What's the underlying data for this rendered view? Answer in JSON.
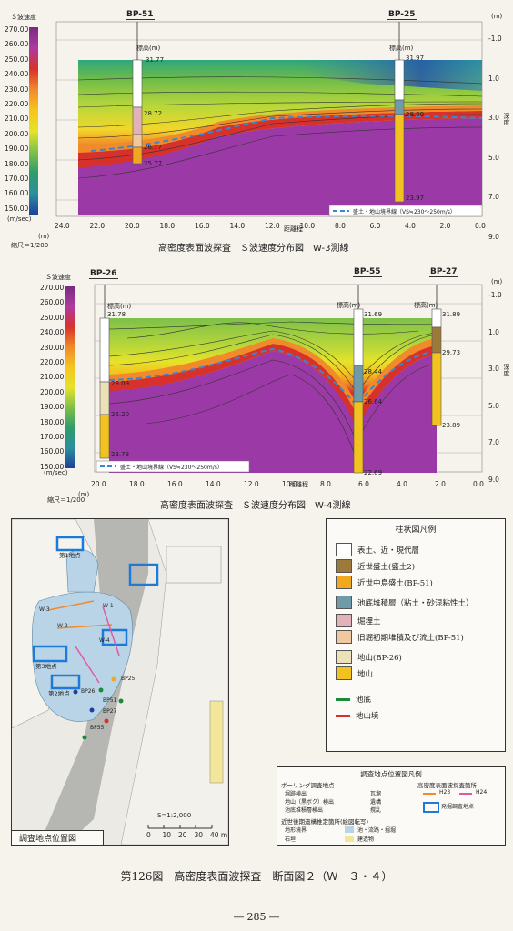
{
  "chart_data": [
    {
      "type": "heatmap",
      "title": "高密度表面波探査　Ｓ波速度分布図　W-3測線",
      "colorbar_title": "Ｓ波速度",
      "colorbar_unit": "(m/sec)",
      "colorbar_ticks": [
        "270.00",
        "260.00",
        "250.00",
        "240.00",
        "230.00",
        "220.00",
        "210.00",
        "200.00",
        "190.00",
        "180.00",
        "170.00",
        "160.00",
        "150.00"
      ],
      "x_ticks": [
        "24.0",
        "22.0",
        "20.0",
        "18.0",
        "16.0",
        "14.0",
        "12.0",
        "10.0",
        "8.0",
        "6.0",
        "4.0",
        "2.0",
        "0.0"
      ],
      "x_unit": "(m)",
      "xlabel": "距離程",
      "right_axis_unit": "(m)",
      "right_axis_ticks": [
        "-1.0",
        "1.0",
        "3.0",
        "5.0",
        "7.0",
        "9.0"
      ],
      "right_axis_label": "深度",
      "scale": "縮尺＝1/200",
      "boreholes": [
        {
          "name": "BP-51",
          "elev_label": "標高(m)",
          "top": "31.77",
          "mid1": "28.72",
          "mid2": "26.77",
          "bottom": "25.77"
        },
        {
          "name": "BP-25",
          "elev_label": "標高(m)",
          "top": "31.97",
          "mid1": "28.00",
          "bottom": "23.97"
        }
      ],
      "boundary_legend": "盛土・地山境界線（VS≒230～250m/s）"
    },
    {
      "type": "heatmap",
      "title": "高密度表面波探査　Ｓ波速度分布図　W-4測線",
      "colorbar_title": "Ｓ波速度",
      "colorbar_unit": "(m/sec)",
      "colorbar_ticks": [
        "270.00",
        "260.00",
        "250.00",
        "240.00",
        "230.00",
        "220.00",
        "210.00",
        "200.00",
        "190.00",
        "180.00",
        "170.00",
        "160.00",
        "150.00"
      ],
      "x_ticks": [
        "20.0",
        "18.0",
        "16.0",
        "14.0",
        "12.0",
        "10.0",
        "8.0",
        "6.0",
        "4.0",
        "2.0",
        "0.0"
      ],
      "x_unit": "(m)",
      "xlabel": "距離程",
      "right_axis_unit": "(m)",
      "right_axis_ticks": [
        "-1.0",
        "1.0",
        "3.0",
        "5.0",
        "7.0",
        "9.0"
      ],
      "right_axis_label": "深度",
      "scale": "縮尺＝1/200",
      "boreholes": [
        {
          "name": "BP-26",
          "elev_label": "標高(m)",
          "top": "31.78",
          "mid1": "28.09",
          "mid2": "26.20",
          "bottom": "23.78"
        },
        {
          "name": "BP-55",
          "elev_label": "標高(m)",
          "top": "31.69",
          "mid1": "28.44",
          "mid2": "26.64",
          "bottom": "22.69"
        },
        {
          "name": "BP-27",
          "elev_label": "標高(m)",
          "top": "31.89",
          "mid1": "29.73",
          "bottom": "23.89"
        }
      ],
      "boundary_legend": "盛土・地山境界線（VS≒230～250m/s）"
    }
  ],
  "colors": {
    "purple": "#9b3aa6",
    "red": "#d8312b",
    "orange": "#f08a2a",
    "yellow": "#f2d72a",
    "green": "#7dc04a",
    "teal": "#2c8ea0",
    "blue": "#1f3f9a"
  },
  "column_legend": {
    "title": "柱状図凡例",
    "items": [
      {
        "label": "表土、近・現代層",
        "color": "#ffffff"
      },
      {
        "label": "近世盛土(盛土2)",
        "color": "#9c7a3c"
      },
      {
        "label": "近世中島盛土(BP-51)",
        "color": "#f0a81e"
      },
      {
        "label": "池底堆積層（粘土・砂混粘性土）",
        "color": "#6f9aa7"
      },
      {
        "label": "堀埋土",
        "color": "#e2b2b8"
      },
      {
        "label": "旧堀初期堆積及び流土(BP-51)",
        "color": "#f0c8a0"
      },
      {
        "label": "地山(BP-26)",
        "color": "#ece0b8"
      },
      {
        "label": "地山",
        "color": "#f2c21e"
      }
    ],
    "lines": [
      {
        "label": "池底",
        "color": "#1b8a3a"
      },
      {
        "label": "地山境",
        "color": "#d8312b"
      }
    ]
  },
  "map": {
    "title": "調査地点位置図",
    "scale": "S=1:2,000",
    "scale_ticks": [
      "0",
      "10",
      "20",
      "30",
      "40 m"
    ],
    "labels": [
      "W-3",
      "W-4",
      "W-1",
      "W-2",
      "第1地点",
      "第3地点",
      "第2地点",
      "BP25",
      "BP26",
      "BP27",
      "BP51",
      "BP55"
    ]
  },
  "map_legend": {
    "title": "調査地点位置図凡例",
    "boring_title": "ボーリング調査地点",
    "boring_items": [
      "堀跡検出",
      "地山（黒ボク）検出",
      "池底堆積層検出"
    ],
    "boring_items2": [
      "瓦溜",
      "遺構",
      "撹乱"
    ],
    "survey_title": "高密度表面波探査箇所",
    "survey_items": [
      "H23",
      "H24"
    ],
    "excavation": "発掘調査地点",
    "remains_title": "近世後期遺構推定箇所(絵図転写)",
    "remains_items": [
      "地形境界",
      "池・流路・掘堀",
      "石垣",
      "建造物"
    ]
  },
  "figure_caption": "第126図　高密度表面波探査　断面図２（Ｗ－３・４）",
  "page_number": "― 285 ―"
}
